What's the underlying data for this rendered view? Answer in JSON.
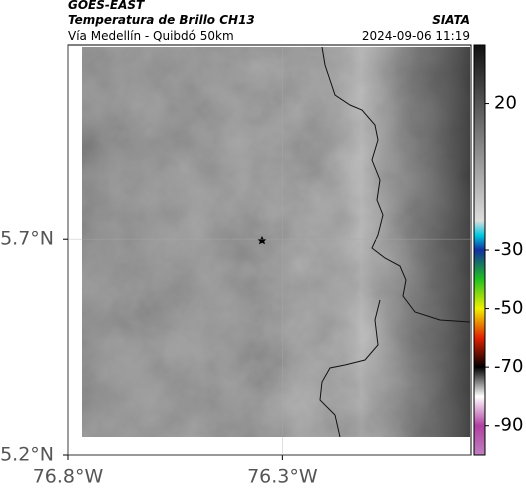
{
  "header": {
    "title": "GOES-EAST",
    "subtitle": "Temperatura de Brillo CH13",
    "route": "Vía Medellín - Quibdó 50km",
    "source": "SIATA",
    "timestamp": "2024-09-06 11:19"
  },
  "map": {
    "xlim": [
      -76.8,
      -75.86
    ],
    "ylim": [
      5.2,
      6.15
    ],
    "xticks": [
      {
        "value": -76.8,
        "label": "76.8°W"
      },
      {
        "value": -76.3,
        "label": "76.3°W"
      }
    ],
    "yticks": [
      {
        "value": 5.2,
        "label": "5.2°N"
      },
      {
        "value": 5.7,
        "label": "5.7°N"
      }
    ],
    "grid": true,
    "colorbar": {
      "lim": [
        40,
        -100
      ],
      "ticks": [
        20,
        -30,
        -50,
        -70,
        -90
      ],
      "stops": [
        {
          "value": 40,
          "color": "#111111"
        },
        {
          "value": -20,
          "color": "#dddddd"
        },
        {
          "value": -25,
          "color": "#00c8e0"
        },
        {
          "value": -30,
          "color": "#1030a0"
        },
        {
          "value": -40,
          "color": "#20c020"
        },
        {
          "value": -50,
          "color": "#f0f000"
        },
        {
          "value": -60,
          "color": "#e02000"
        },
        {
          "value": -70,
          "color": "#000000"
        },
        {
          "value": -80,
          "color": "#ffffff"
        },
        {
          "value": -90,
          "color": "#b040a0"
        },
        {
          "value": -100,
          "color": "#c080c0"
        }
      ]
    }
  }
}
